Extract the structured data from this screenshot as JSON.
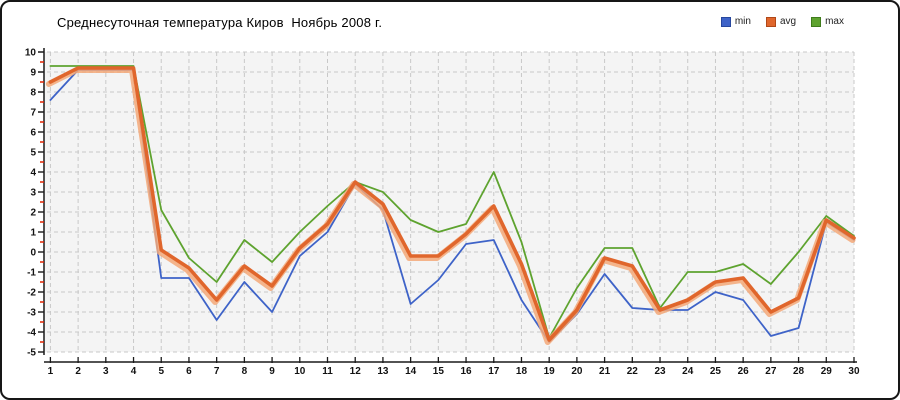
{
  "title": "Среднесуточная температура Киров  Ноябрь 2008 г.",
  "legend": [
    {
      "label": "min",
      "color": "#3e63c8",
      "border": "#27479e"
    },
    {
      "label": "avg",
      "color": "#e0662c",
      "border": "#b04818"
    },
    {
      "label": "max",
      "color": "#5ea32f",
      "border": "#3f7c1c"
    }
  ],
  "colors": {
    "plot_background": "#f4f4f4",
    "gridline": "#c8c8c8",
    "axis": "#1a1a1a",
    "minor_tick": "#dd2200",
    "tick_label": "#111111"
  },
  "chart_data": {
    "type": "line",
    "title": "Среднесуточная температура Киров  Ноябрь 2008 г.",
    "xlabel": "",
    "ylabel": "",
    "x": [
      1,
      2,
      3,
      4,
      5,
      6,
      7,
      8,
      9,
      10,
      11,
      12,
      13,
      14,
      15,
      16,
      17,
      18,
      19,
      20,
      21,
      22,
      23,
      24,
      25,
      26,
      27,
      28,
      29,
      30
    ],
    "ylim": [
      -5,
      10
    ],
    "ytick_step": 1,
    "y_minor_tick_step": 0.5,
    "grid": true,
    "grid_style": "dashed",
    "legend_position": "top-right",
    "series": [
      {
        "name": "min",
        "color": "#3e63c8",
        "values": [
          7.6,
          9.1,
          9.1,
          9.1,
          -1.3,
          -1.3,
          -3.4,
          -1.5,
          -3.0,
          -0.2,
          1.0,
          3.4,
          2.1,
          -2.6,
          -1.4,
          0.4,
          0.6,
          -2.4,
          -4.5,
          -3.1,
          -1.1,
          -2.8,
          -2.9,
          -2.9,
          -2.0,
          -2.4,
          -4.2,
          -3.8,
          1.5,
          0.6
        ]
      },
      {
        "name": "avg",
        "color": "#e0662c",
        "halo_color": "#f3a878",
        "values": [
          8.5,
          9.2,
          9.2,
          9.2,
          0.1,
          -0.8,
          -2.4,
          -0.7,
          -1.7,
          0.2,
          1.4,
          3.5,
          2.4,
          -0.2,
          -0.2,
          0.9,
          2.3,
          -0.6,
          -4.4,
          -2.9,
          -0.3,
          -0.7,
          -2.9,
          -2.4,
          -1.5,
          -1.3,
          -3.0,
          -2.3,
          1.6,
          0.7
        ]
      },
      {
        "name": "max",
        "color": "#5ea32f",
        "values": [
          9.3,
          9.3,
          9.3,
          9.3,
          2.1,
          -0.3,
          -1.5,
          0.6,
          -0.5,
          1.0,
          2.3,
          3.5,
          3.0,
          1.6,
          1.0,
          1.4,
          4.0,
          0.5,
          -4.3,
          -1.8,
          0.2,
          0.2,
          -2.8,
          -1.0,
          -1.0,
          -0.6,
          -1.6,
          0.0,
          1.8,
          0.8
        ]
      }
    ]
  }
}
